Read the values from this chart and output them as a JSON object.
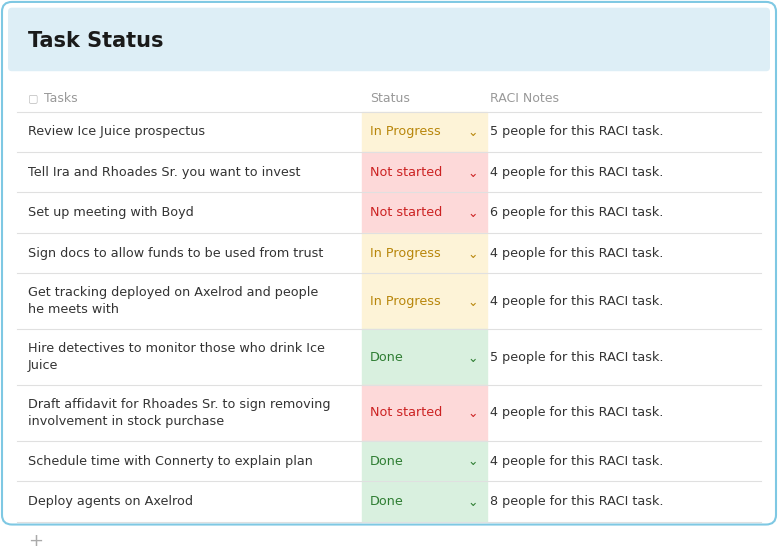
{
  "title": "Task Status",
  "header_bg": "#ddeef6",
  "border_color": "#7ec8e3",
  "title_color": "#1a1a1a",
  "title_fontsize": 15,
  "col_header_color": "#999999",
  "col_header_fontsize": 9,
  "columns": [
    "Tasks",
    "Status",
    "RACI Notes"
  ],
  "rows": [
    {
      "task": "Review Ice Juice prospectus",
      "task2": "",
      "status": "In Progress",
      "status_color": "#b8860b",
      "status_bg": "#fdf3d7",
      "notes": "5 people for this RACI task."
    },
    {
      "task": "Tell Ira and Rhoades Sr. you want to invest",
      "task2": "",
      "status": "Not started",
      "status_color": "#cc2222",
      "status_bg": "#fdd9d9",
      "notes": "4 people for this RACI task."
    },
    {
      "task": "Set up meeting with Boyd",
      "task2": "",
      "status": "Not started",
      "status_color": "#cc2222",
      "status_bg": "#fdd9d9",
      "notes": "6 people for this RACI task."
    },
    {
      "task": "Sign docs to allow funds to be used from trust",
      "task2": "",
      "status": "In Progress",
      "status_color": "#b8860b",
      "status_bg": "#fdf3d7",
      "notes": "4 people for this RACI task."
    },
    {
      "task": "Get tracking deployed on Axelrod and people",
      "task2": "he meets with",
      "status": "In Progress",
      "status_color": "#b8860b",
      "status_bg": "#fdf3d7",
      "notes": "4 people for this RACI task."
    },
    {
      "task": "Hire detectives to monitor those who drink Ice",
      "task2": "Juice",
      "status": "Done",
      "status_color": "#2e7d32",
      "status_bg": "#d9f0df",
      "notes": "5 people for this RACI task."
    },
    {
      "task": "Draft affidavit for Rhoades Sr. to sign removing",
      "task2": "involvement in stock purchase",
      "status": "Not started",
      "status_color": "#cc2222",
      "status_bg": "#fdd9d9",
      "notes": "4 people for this RACI task."
    },
    {
      "task": "Schedule time with Connerty to explain plan",
      "task2": "",
      "status": "Done",
      "status_color": "#2e7d32",
      "status_bg": "#d9f0df",
      "notes": "4 people for this RACI task."
    },
    {
      "task": "Deploy agents on Axelrod",
      "task2": "",
      "status": "Done",
      "status_color": "#2e7d32",
      "status_bg": "#d9f0df",
      "notes": "8 people for this RACI task."
    }
  ],
  "divider_color": "#e0e0e0",
  "text_color": "#333333",
  "text_fontsize": 9.2,
  "plus_color": "#aaaaaa",
  "icon_color": "#bbbbbb",
  "fig_width": 7.78,
  "fig_height": 5.47,
  "dpi": 100
}
